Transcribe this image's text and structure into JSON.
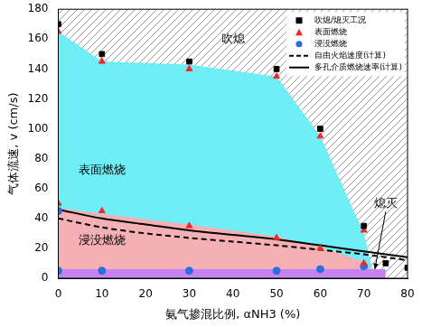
{
  "chart_data": {
    "type": "scatter",
    "x_label": "氨气掺混比例, αNH3 (%)",
    "y_label": "气体流速, v (cm/s)",
    "xlim": [
      0,
      80
    ],
    "xticks": [
      0,
      10,
      20,
      30,
      40,
      50,
      60,
      70,
      80
    ],
    "ylim": [
      0,
      180
    ],
    "yticks": [
      0,
      20,
      40,
      60,
      80,
      100,
      120,
      140,
      160,
      180
    ],
    "grid": false,
    "legend": "upper right",
    "series": [
      {
        "name": "吹熄/熄灭工况",
        "type": "scatter",
        "marker": "square",
        "color": "#000000",
        "x": [
          0,
          10,
          30,
          50,
          60,
          70,
          75,
          80
        ],
        "values": [
          170,
          150,
          145,
          140,
          100,
          35,
          10,
          7
        ]
      },
      {
        "name": "表面燃烧",
        "type": "scatter",
        "marker": "triangle",
        "color": "#f02828",
        "x": [
          0,
          10,
          30,
          50,
          60,
          70,
          0,
          10,
          30,
          50,
          60,
          70
        ],
        "values": [
          165,
          145,
          140,
          135,
          95,
          32,
          50,
          45,
          35,
          27,
          20,
          10
        ]
      },
      {
        "name": "浸没燃烧",
        "type": "scatter",
        "marker": "circle",
        "color": "#2a6fdc",
        "x": [
          0,
          0,
          10,
          30,
          50,
          60,
          70
        ],
        "values": [
          45,
          5,
          5,
          5,
          5,
          6,
          8
        ]
      },
      {
        "name": "自由火焰速度(计算)",
        "type": "line",
        "line_style": "dashed",
        "color": "#000000",
        "x": [
          0,
          10,
          20,
          30,
          40,
          50,
          60,
          70,
          80
        ],
        "values": [
          40,
          34,
          30,
          27,
          24.5,
          22,
          19,
          16,
          12
        ]
      },
      {
        "name": "多孔介质燃烧速率(计算)",
        "type": "line",
        "line_style": "solid",
        "color": "#000000",
        "x": [
          0,
          10,
          20,
          30,
          40,
          50,
          60,
          70,
          80
        ],
        "values": [
          46,
          40,
          36,
          32,
          29,
          26,
          22,
          18,
          14
        ]
      }
    ],
    "regions": [
      {
        "color": "#70eef5",
        "x": [
          0,
          10,
          30,
          50,
          60,
          70,
          72
        ],
        "values": [
          165,
          145,
          143,
          135,
          95,
          30,
          5
        ]
      },
      {
        "color": "#f4b0b4",
        "x": [
          0,
          10,
          30,
          50,
          60,
          70,
          72
        ],
        "values": [
          47,
          43,
          36,
          28,
          21,
          11,
          5
        ]
      },
      {
        "color": "#c583f2",
        "x": [
          0,
          75
        ],
        "values": [
          6,
          6
        ]
      }
    ],
    "annotations": [
      {
        "text": "吹熄",
        "x": 40,
        "y": 160
      },
      {
        "text": "表面燃烧",
        "x": 10,
        "y": 72
      },
      {
        "text": "浸没燃烧",
        "x": 10,
        "y": 25
      },
      {
        "text": "熄灭",
        "x": 75,
        "y": 50,
        "arrow_to": [
          72.5,
          6
        ]
      }
    ]
  }
}
